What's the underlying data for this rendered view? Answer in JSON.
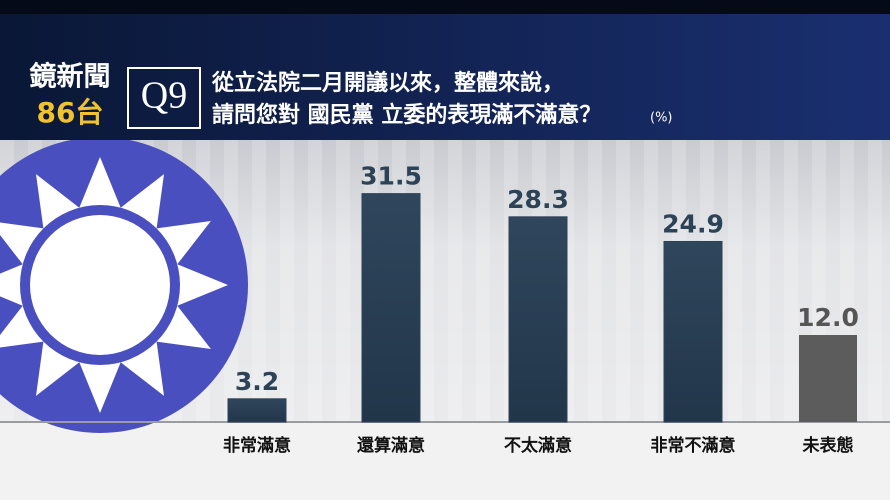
{
  "header": {
    "logo": "鏡新聞",
    "channel": "86台",
    "question_no": "Q9"
  },
  "chart_data": {
    "type": "bar",
    "title": "從立法院二月開議以來，整體來說，",
    "subtitle": "請問您對 國民黨 立委的表現滿不滿意？",
    "unit": "(%)",
    "categories": [
      "非常滿意",
      "還算滿意",
      "不太滿意",
      "非常不滿意",
      "未表態"
    ],
    "values": [
      3.2,
      31.5,
      28.3,
      24.9,
      12.0
    ],
    "value_labels": [
      "3.2",
      "31.5",
      "28.3",
      "24.9",
      "12.0"
    ],
    "colors": [
      "#2c4257",
      "#2c4257",
      "#2c4257",
      "#2c4257",
      "#5c5c5c"
    ],
    "ylim": [
      0,
      40
    ]
  }
}
